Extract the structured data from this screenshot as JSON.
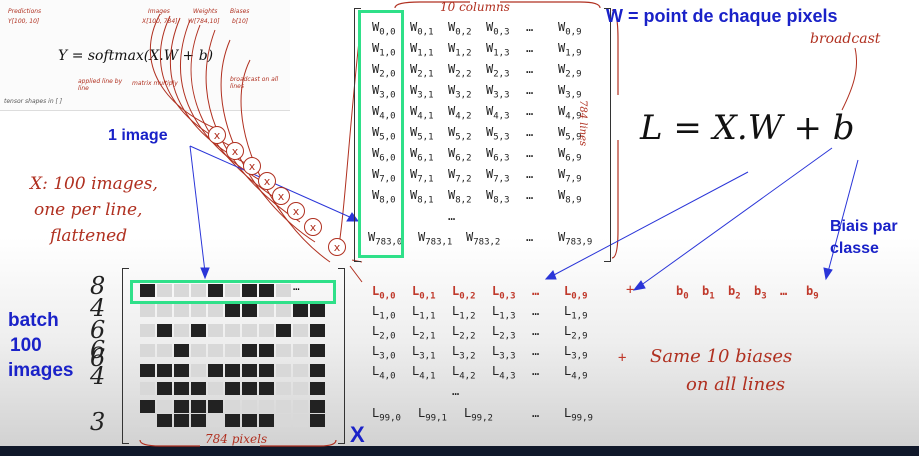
{
  "inset": {
    "formula": "Y = softmax(X.W + b)",
    "labels": {
      "predictions": "Predictions",
      "predictions_shape": "Y[100, 10]",
      "images": "Images",
      "images_shape": "X[100, 784]",
      "weights": "Weights",
      "weights_shape": "W[784,10]",
      "biases": "Biases",
      "biases_shape": "b[10]",
      "applied_line": "applied line by line",
      "matrix_multiply": "matrix multiply",
      "broadcast_all": "broadcast on all lines",
      "tensor_shapes": "tensor shapes in [ ]"
    }
  },
  "w_matrix": {
    "columns_label": "10 columns",
    "lines_label": "784 lines",
    "rows": [
      [
        "W0,0",
        "W0,1",
        "W0,2",
        "W0,3",
        "…",
        "W0,9"
      ],
      [
        "W1,0",
        "W1,1",
        "W1,2",
        "W1,3",
        "…",
        "W1,9"
      ],
      [
        "W2,0",
        "W2,1",
        "W2,2",
        "W2,3",
        "…",
        "W2,9"
      ],
      [
        "W3,0",
        "W3,1",
        "W3,2",
        "W3,3",
        "…",
        "W3,9"
      ],
      [
        "W4,0",
        "W4,1",
        "W4,2",
        "W4,3",
        "…",
        "W4,9"
      ],
      [
        "W5,0",
        "W5,1",
        "W5,2",
        "W5,3",
        "…",
        "W5,9"
      ],
      [
        "W6,0",
        "W6,1",
        "W6,2",
        "W6,3",
        "…",
        "W6,9"
      ],
      [
        "W7,0",
        "W7,1",
        "W7,2",
        "W7,3",
        "…",
        "W7,9"
      ],
      [
        "W8,0",
        "W8,1",
        "W8,2",
        "W8,3",
        "…",
        "W8,9"
      ],
      [
        "",
        "",
        "…",
        "",
        "",
        ""
      ],
      [
        "W783,0",
        "W783,1",
        "W783,2",
        "",
        "…",
        "W783,9"
      ]
    ]
  },
  "annotations": {
    "w_caption": "W = point de chaque pixels",
    "broadcast": "broadcast",
    "one_image": "1 image",
    "x_note": [
      "X: 100 images,",
      "one per line,",
      "flattened"
    ],
    "biais_par_classe": [
      "Biais par",
      "classe"
    ],
    "batch": [
      "batch",
      "100",
      "images"
    ],
    "x_label": "X",
    "pixels_label": "784 pixels",
    "same_biases": [
      "Same 10 biases",
      "on all lines"
    ],
    "plus": "+"
  },
  "main_formula": "L = X.W + b",
  "l_matrix": {
    "rows": [
      [
        "L0,0",
        "L0,1",
        "L0,2",
        "L0,3",
        "…",
        "L0,9"
      ],
      [
        "L1,0",
        "L1,1",
        "L1,2",
        "L1,3",
        "…",
        "L1,9"
      ],
      [
        "L2,0",
        "L2,1",
        "L2,2",
        "L2,3",
        "…",
        "L2,9"
      ],
      [
        "L3,0",
        "L3,1",
        "L3,2",
        "L3,3",
        "…",
        "L3,9"
      ],
      [
        "L4,0",
        "L4,1",
        "L4,2",
        "L4,3",
        "…",
        "L4,9"
      ],
      [
        "",
        "",
        "…",
        "",
        "",
        ""
      ],
      [
        "L99,0",
        "L99,1",
        "L99,2",
        "",
        "…",
        "L99,9"
      ]
    ]
  },
  "biases": [
    "b0",
    "b1",
    "b2",
    "b3",
    "…",
    "b9"
  ],
  "digits": [
    "8",
    "4",
    "6",
    "6",
    "6",
    "4",
    "3"
  ],
  "x_grid": [
    [
      1,
      0,
      0,
      0,
      1,
      0,
      1,
      1,
      0,
      "…"
    ],
    [
      0,
      0,
      0,
      0,
      0,
      1,
      1,
      0,
      0,
      1,
      1
    ],
    [
      0,
      1,
      0,
      1,
      0,
      0,
      0,
      0,
      1,
      0,
      1
    ],
    [
      0,
      0,
      1,
      0,
      0,
      0,
      1,
      1,
      0,
      0,
      1
    ],
    [
      1,
      1,
      1,
      0,
      1,
      1,
      1,
      1,
      0,
      0,
      1
    ],
    [
      0,
      1,
      1,
      1,
      0,
      1,
      1,
      1,
      0,
      0,
      1
    ],
    [
      1,
      0,
      1,
      1,
      1,
      0,
      0,
      0,
      0,
      0,
      1
    ],
    [
      "",
      "",
      "",
      "",
      "",
      "",
      "…",
      "",
      "",
      "",
      ""
    ],
    [
      0,
      1,
      1,
      1,
      0,
      1,
      1,
      1,
      0,
      0,
      1
    ]
  ],
  "colors": {
    "highlight_green": "#2fe089",
    "red_ink": "#b03020",
    "blue_label": "#1a22c8"
  }
}
